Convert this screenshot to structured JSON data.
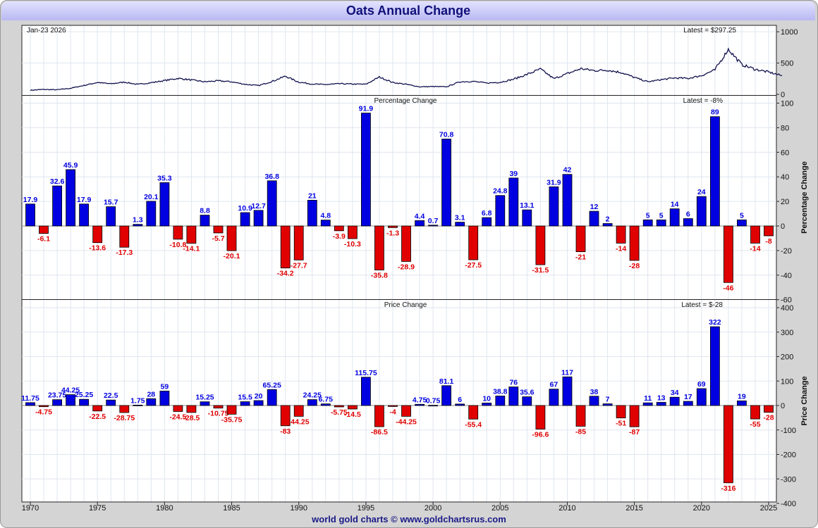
{
  "title": "Oats Annual Change",
  "footer": "world gold charts © www.goldchartsrus.com",
  "colors": {
    "positive": "#0000e0",
    "negative": "#e00000",
    "line": "#12124e",
    "grid": "#dfe6ef",
    "title_text": "#10107a"
  },
  "chart_data": [
    {
      "type": "line",
      "date_label": "Jan-23  2026",
      "latest_label": "Latest = $297.25",
      "ylim": [
        0,
        1100
      ],
      "yticks": [
        0,
        500,
        1000
      ],
      "x": [
        1970,
        1971,
        1972,
        1973,
        1974,
        1975,
        1976,
        1977,
        1978,
        1979,
        1980,
        1981,
        1982,
        1983,
        1984,
        1985,
        1986,
        1987,
        1988,
        1989,
        1990,
        1991,
        1992,
        1993,
        1994,
        1995,
        1996,
        1997,
        1998,
        1999,
        2000,
        2001,
        2002,
        2003,
        2004,
        2005,
        2006,
        2007,
        2008,
        2009,
        2010,
        2011,
        2012,
        2013,
        2014,
        2015,
        2016,
        2017,
        2018,
        2019,
        2020,
        2021,
        2022,
        2023,
        2024,
        2025,
        2026
      ],
      "values": [
        66,
        78,
        73,
        97,
        142,
        190,
        168,
        195,
        158,
        186,
        220,
        255,
        230,
        200,
        216,
        200,
        160,
        140,
        205,
        290,
        195,
        165,
        155,
        170,
        164,
        161,
        277,
        190,
        160,
        120,
        125,
        120,
        201,
        207,
        180,
        193,
        242,
        318,
        405,
        250,
        330,
        410,
        380,
        387,
        350,
        270,
        200,
        235,
        262,
        255,
        300,
        390,
        720,
        474,
        400,
        355,
        297
      ]
    },
    {
      "type": "bar",
      "panel_title": "Percentage Change",
      "latest_label": "Latest = -8%",
      "ylabel": "Percentage Change",
      "ylim": [
        -60,
        100
      ],
      "yticks": [
        -60,
        -40,
        -20,
        0,
        20,
        40,
        60,
        80,
        100
      ],
      "categories": [
        1970,
        1971,
        1972,
        1973,
        1974,
        1975,
        1976,
        1977,
        1978,
        1979,
        1980,
        1981,
        1982,
        1983,
        1984,
        1985,
        1986,
        1987,
        1988,
        1989,
        1990,
        1991,
        1992,
        1993,
        1994,
        1995,
        1996,
        1997,
        1998,
        1999,
        2000,
        2001,
        2002,
        2003,
        2004,
        2005,
        2006,
        2007,
        2008,
        2009,
        2010,
        2011,
        2012,
        2013,
        2014,
        2015,
        2016,
        2017,
        2018,
        2019,
        2020,
        2021,
        2022,
        2023,
        2024,
        2025
      ],
      "values": [
        17.9,
        -6.1,
        32.6,
        45.9,
        17.9,
        -13.6,
        15.7,
        -17.3,
        1.3,
        20.1,
        35.3,
        -10.8,
        -14.1,
        8.8,
        -5.7,
        -20.1,
        10.9,
        12.7,
        36.8,
        -34.2,
        -27.7,
        21,
        4.8,
        -3.9,
        -10.3,
        91.9,
        -35.8,
        -1.3,
        -28.9,
        4.4,
        0.7,
        70.8,
        3.1,
        -27.5,
        6.8,
        24.8,
        39,
        13.1,
        -31.5,
        31.9,
        42,
        -21,
        12,
        2,
        -14,
        -28,
        5,
        5,
        14,
        6,
        24,
        89,
        -46,
        5,
        -14,
        -8
      ],
      "labels": [
        "17.9",
        "-6.1",
        "32.6",
        "45.9",
        "17.9",
        "-13.6",
        "15.7",
        "-17.3",
        "1.3",
        "20.1",
        "35.3",
        "-10.8",
        "-14.1",
        "8.8",
        "-5.7",
        "-20.1",
        "10.9",
        "12.7",
        "36.8",
        "-34.2",
        "-27.7",
        "21",
        "4.8",
        "-3.9",
        "-10.3",
        "91.9",
        "-35.8",
        "-1.3",
        "-28.9",
        "4.4",
        "0.7",
        "70.8",
        "3.1",
        "-27.5",
        "6.8",
        "24.8",
        "39",
        "13.1",
        "-31.5",
        "31.9",
        "42",
        "-21",
        "12",
        "2",
        "-14",
        "-28",
        "5",
        "5",
        "14",
        "6",
        "24",
        "89",
        "-46",
        "5",
        "-14",
        "-8"
      ]
    },
    {
      "type": "bar",
      "panel_title": "Price Change",
      "latest_label": "Latest = $-28",
      "ylabel": "Price Change",
      "ylim": [
        -400,
        400
      ],
      "yticks": [
        -400,
        -300,
        -200,
        -100,
        0,
        100,
        200,
        300,
        400
      ],
      "categories": [
        1970,
        1971,
        1972,
        1973,
        1974,
        1975,
        1976,
        1977,
        1978,
        1979,
        1980,
        1981,
        1982,
        1983,
        1984,
        1985,
        1986,
        1987,
        1988,
        1989,
        1990,
        1991,
        1992,
        1993,
        1994,
        1995,
        1996,
        1997,
        1998,
        1999,
        2000,
        2001,
        2002,
        2003,
        2004,
        2005,
        2006,
        2007,
        2008,
        2009,
        2010,
        2011,
        2012,
        2013,
        2014,
        2015,
        2016,
        2017,
        2018,
        2019,
        2020,
        2021,
        2022,
        2023,
        2024,
        2025
      ],
      "values": [
        11.75,
        -4.75,
        23.75,
        44.25,
        25.25,
        -22.5,
        22.5,
        -28.75,
        1.75,
        28,
        59,
        -24.5,
        -28.5,
        15.25,
        -10.75,
        -35.75,
        15.5,
        20,
        65.25,
        -83,
        -44.25,
        24.25,
        6.75,
        -5.75,
        -14.5,
        115.75,
        -86.5,
        -4,
        -44.25,
        4.75,
        0.75,
        81.1,
        6,
        -55.4,
        10,
        38.8,
        76,
        35.6,
        -96.6,
        67,
        117,
        -85,
        38,
        7,
        -51,
        -87,
        11,
        13,
        34,
        17,
        69,
        322,
        -316,
        19,
        -55,
        -28
      ],
      "labels": [
        "11.75",
        "-4.75",
        "23.75",
        "44.25",
        "25.25",
        "-22.5",
        "22.5",
        "-28.75",
        "1.75",
        "28",
        "59",
        "-24.5",
        "-28.5",
        "15.25",
        "-10.75",
        "-35.75",
        "15.5",
        "20",
        "65.25",
        "-83",
        "-44.25",
        "24.25",
        "6.75",
        "-5.75",
        "-14.5",
        "115.75",
        "-86.5",
        "-4",
        "-44.25",
        "4.75",
        "0.75",
        "81.1",
        "6",
        "-55.4",
        "10",
        "38.8",
        "76",
        "35.6",
        "-96.6",
        "67",
        "117",
        "-85",
        "38",
        "7",
        "-51",
        "-87",
        "11",
        "13",
        "34",
        "17",
        "69",
        "322",
        "-316",
        "19",
        "-55",
        "-28"
      ]
    }
  ],
  "x_axis": {
    "ticks": [
      1970,
      1975,
      1980,
      1985,
      1990,
      1995,
      2000,
      2005,
      2010,
      2015,
      2020,
      2025
    ],
    "labels": [
      "1970",
      "1975",
      "1980",
      "1985",
      "1990",
      "1995",
      "2000",
      "2005",
      "2010",
      "2015",
      "2020",
      "2025"
    ]
  }
}
